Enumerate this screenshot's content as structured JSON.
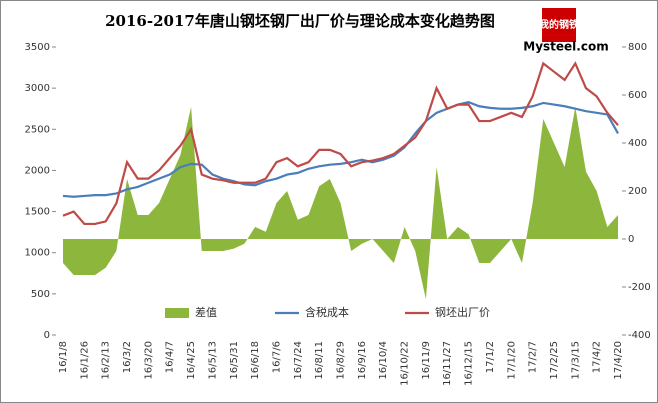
{
  "logo": {
    "cn": "我的钢铁",
    "en": "Mysteel.com"
  },
  "chart_data": {
    "type": "combo",
    "title": "2016-2017年唐山钢坯钢厂出厂价与理论成本变化趋势图",
    "categories": [
      "16/1/8",
      null,
      "16/1/26",
      null,
      "16/2/13",
      null,
      "16/3/2",
      null,
      "16/3/20",
      null,
      "16/4/7",
      null,
      "16/4/25",
      null,
      "16/5/13",
      null,
      "16/5/31",
      null,
      "16/6/18",
      null,
      "16/7/6",
      null,
      "16/7/24",
      null,
      "16/8/11",
      null,
      "16/8/29",
      null,
      "16/9/16",
      null,
      "16/10/4",
      null,
      "16/10/22",
      null,
      "16/11/9",
      null,
      "16/11/27",
      null,
      "16/12/15",
      null,
      "17/1/2",
      null,
      "17/1/20",
      null,
      "17/2/7",
      null,
      "17/2/25",
      null,
      "17/3/15",
      null,
      "17/4/2",
      null,
      "17/4/20"
    ],
    "series": [
      {
        "name": "差值",
        "kind": "area",
        "axis": "y2",
        "color": "#8db63c",
        "values": [
          -100,
          -150,
          -150,
          -150,
          -120,
          -50,
          250,
          100,
          100,
          150,
          250,
          350,
          550,
          -50,
          -50,
          -50,
          -40,
          -20,
          50,
          30,
          150,
          200,
          80,
          100,
          220,
          250,
          150,
          -50,
          -20,
          0,
          -50,
          -100,
          50,
          -50,
          -250,
          300,
          0,
          50,
          20,
          -100,
          -100,
          -50,
          0,
          -100,
          150,
          500,
          400,
          300,
          550,
          280,
          200,
          50,
          100
        ]
      },
      {
        "name": "含税成本",
        "kind": "line",
        "color": "#4a7ebb",
        "values": [
          1690,
          1680,
          1690,
          1700,
          1700,
          1720,
          1770,
          1800,
          1850,
          1900,
          1950,
          2040,
          2080,
          2070,
          1950,
          1900,
          1870,
          1830,
          1820,
          1870,
          1900,
          1950,
          1970,
          2020,
          2050,
          2070,
          2080,
          2100,
          2130,
          2100,
          2130,
          2180,
          2280,
          2450,
          2600,
          2700,
          2750,
          2800,
          2830,
          2780,
          2760,
          2750,
          2750,
          2760,
          2780,
          2820,
          2800,
          2780,
          2750,
          2720,
          2700,
          2680,
          2450
        ]
      },
      {
        "name": "钢坯出厂价",
        "kind": "line",
        "color": "#be4b48",
        "values": [
          1450,
          1500,
          1350,
          1350,
          1380,
          1600,
          2100,
          1900,
          1900,
          2000,
          2150,
          2300,
          2500,
          1950,
          1900,
          1880,
          1850,
          1850,
          1850,
          1900,
          2100,
          2150,
          2050,
          2100,
          2250,
          2250,
          2200,
          2050,
          2100,
          2120,
          2150,
          2200,
          2300,
          2400,
          2600,
          3000,
          2750,
          2800,
          2800,
          2600,
          2600,
          2650,
          2700,
          2650,
          2900,
          3300,
          3200,
          3100,
          3300,
          3000,
          2900,
          2700,
          2550
        ]
      }
    ],
    "ylim": [
      0,
      3500
    ],
    "yticks": [
      0,
      500,
      1000,
      1500,
      2000,
      2500,
      3000,
      3500
    ],
    "y2lim": [
      -400,
      800
    ],
    "y2ticks": [
      -400,
      -200,
      0,
      200,
      400,
      600,
      800
    ],
    "grid": false,
    "legend": "bottom"
  }
}
